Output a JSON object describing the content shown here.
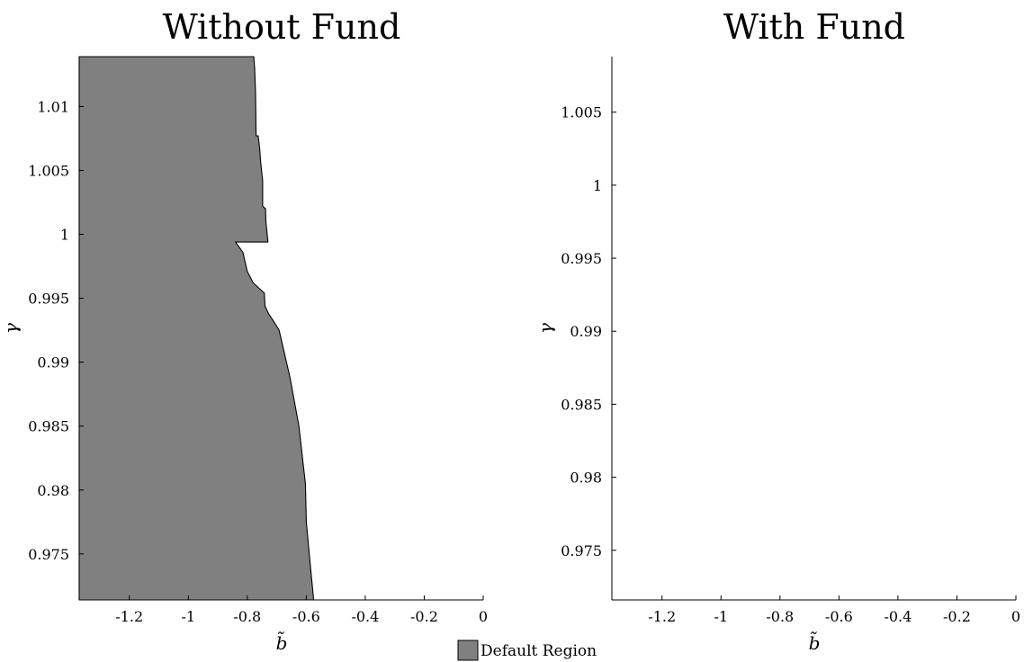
{
  "chart_data": [
    {
      "type": "area",
      "title": "Without Fund",
      "xlabel": "b̃",
      "ylabel": "γ",
      "xlim": [
        -1.37,
        0
      ],
      "ylim": [
        0.9714,
        1.0139
      ],
      "x_ticks": [
        -1.2,
        -1,
        -0.8,
        -0.6,
        -0.4,
        -0.2,
        0
      ],
      "x_tick_labels": [
        "-1.2",
        "-1",
        "-0.8",
        "-0.6",
        "-0.4",
        "-0.2",
        "0"
      ],
      "y_ticks": [
        0.975,
        0.98,
        0.985,
        0.99,
        0.995,
        1,
        1.005,
        1.01
      ],
      "y_tick_labels": [
        "0.975",
        "0.98",
        "0.985",
        "0.99",
        "0.995",
        "1",
        "1.005",
        "1.01"
      ],
      "grid": false,
      "fill_color": "#808080",
      "series": [
        {
          "name": "Default Region",
          "boundary": [
            {
              "x": -0.575,
              "y": 0.9714
            },
            {
              "x": -0.585,
              "y": 0.9738
            },
            {
              "x": -0.6,
              "y": 0.9775
            },
            {
              "x": -0.603,
              "y": 0.9805
            },
            {
              "x": -0.625,
              "y": 0.985
            },
            {
              "x": -0.655,
              "y": 0.9888
            },
            {
              "x": -0.692,
              "y": 0.9925
            },
            {
              "x": -0.708,
              "y": 0.9931
            },
            {
              "x": -0.728,
              "y": 0.9938
            },
            {
              "x": -0.74,
              "y": 0.9944
            },
            {
              "x": -0.742,
              "y": 0.9954
            },
            {
              "x": -0.78,
              "y": 0.9962
            },
            {
              "x": -0.8,
              "y": 0.9971
            },
            {
              "x": -0.815,
              "y": 0.9986
            },
            {
              "x": -0.84,
              "y": 0.9994
            },
            {
              "x": -0.73,
              "y": 0.9994
            },
            {
              "x": -0.737,
              "y": 1.001
            },
            {
              "x": -0.738,
              "y": 1.002
            },
            {
              "x": -0.748,
              "y": 1.0022
            },
            {
              "x": -0.748,
              "y": 1.0042
            },
            {
              "x": -0.755,
              "y": 1.0057
            },
            {
              "x": -0.758,
              "y": 1.0067
            },
            {
              "x": -0.763,
              "y": 1.0077
            },
            {
              "x": -0.77,
              "y": 1.0077
            },
            {
              "x": -0.772,
              "y": 1.0111
            },
            {
              "x": -0.775,
              "y": 1.013
            },
            {
              "x": -0.778,
              "y": 1.0139
            }
          ]
        }
      ]
    },
    {
      "type": "area",
      "title": "With Fund",
      "xlabel": "b̃",
      "ylabel": "γ",
      "xlim": [
        -1.37,
        0
      ],
      "ylim": [
        0.9716,
        1.0088
      ],
      "x_ticks": [
        -1.2,
        -1,
        -0.8,
        -0.6,
        -0.4,
        -0.2,
        0
      ],
      "x_tick_labels": [
        "-1.2",
        "-1",
        "-0.8",
        "-0.6",
        "-0.4",
        "-0.2",
        "0"
      ],
      "y_ticks": [
        0.975,
        0.98,
        0.985,
        0.99,
        0.995,
        1,
        1.005
      ],
      "y_tick_labels": [
        "0.975",
        "0.98",
        "0.985",
        "0.99",
        "0.995",
        "1",
        "1.005"
      ],
      "grid": false,
      "series": []
    }
  ],
  "legend": {
    "label": "Default Region",
    "color": "#808080",
    "placement": "bottom-center"
  }
}
